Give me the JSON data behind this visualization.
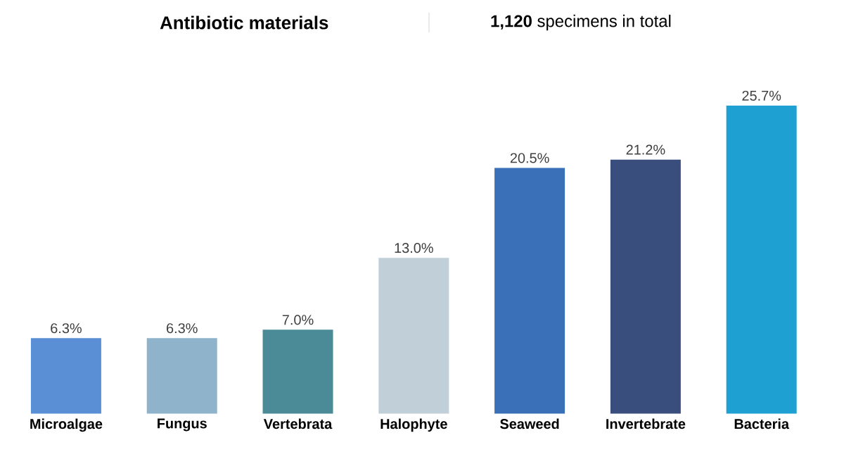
{
  "chart_data": {
    "type": "bar",
    "title": "Antibiotic materials",
    "subtitle": "**1,120** specimens in total",
    "categories": [
      "Microalgae",
      "Fungus",
      "Vertebrata",
      "Halophyte",
      "Seaweed",
      "Invertebrate",
      "Bacteria"
    ],
    "values": [
      6.3,
      6.3,
      7.0,
      13.0,
      20.5,
      21.2,
      25.7
    ],
    "value_labels": [
      "6.3%",
      "6.3%",
      "7.0%",
      "13.0%",
      "20.5%",
      "21.2%",
      "25.7%"
    ],
    "colors": [
      "#5a8fd6",
      "#8eb3cb",
      "#4b8b97",
      "#c1cfd8",
      "#3a70b8",
      "#3a4e7e",
      "#1ea0d3"
    ]
  }
}
